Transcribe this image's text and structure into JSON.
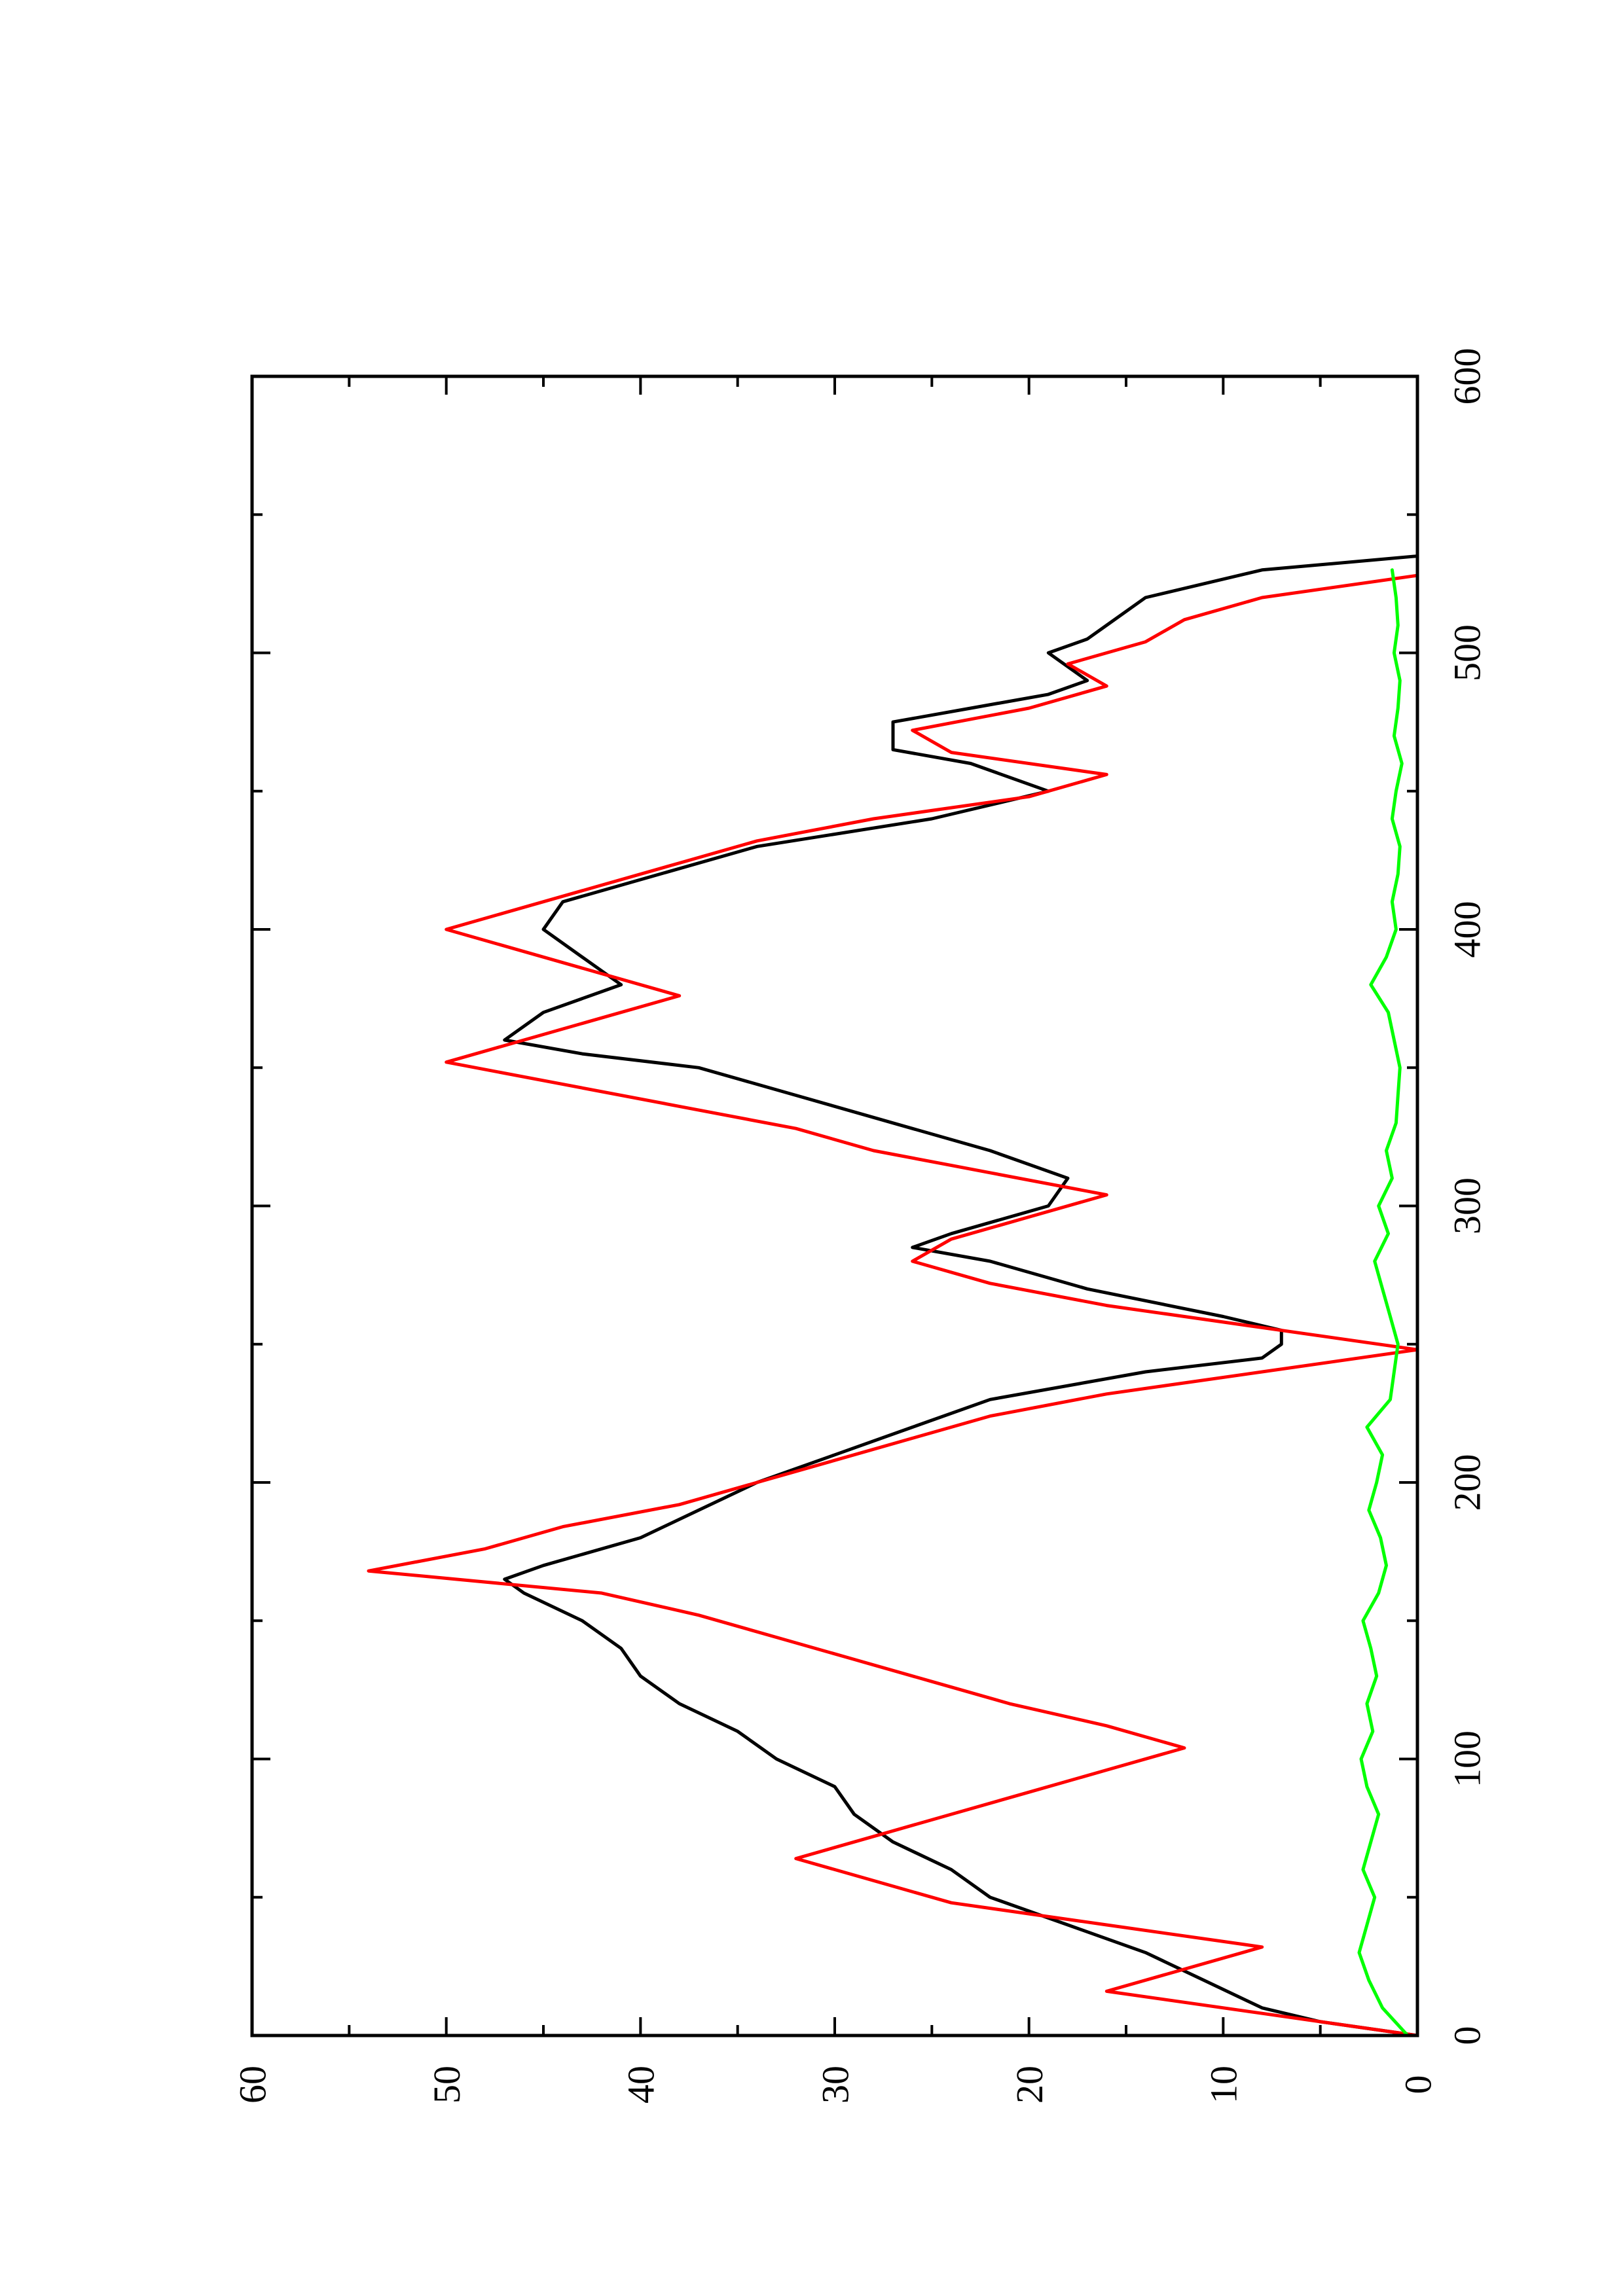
{
  "chart_data": {
    "type": "line",
    "orientation": "rotated-90-ccw",
    "title": "",
    "xlabel": "",
    "ylabel": "",
    "xlim": [
      0,
      600
    ],
    "ylim": [
      0,
      60
    ],
    "x_ticks": [
      0,
      100,
      200,
      300,
      400,
      500,
      600
    ],
    "x_tick_labels": [
      "0",
      "100",
      "200",
      "300",
      "400",
      "500",
      "600"
    ],
    "x_minor_ticks": [
      50,
      150,
      250,
      350,
      450,
      550
    ],
    "y_ticks": [
      0,
      10,
      20,
      30,
      40,
      50,
      60
    ],
    "y_tick_labels": [
      "0",
      "10",
      "20",
      "30",
      "40",
      "50",
      "60"
    ],
    "y_minor_ticks": [
      5,
      15,
      25,
      35,
      45,
      55
    ],
    "grid": false,
    "legend": "none",
    "series": [
      {
        "color": "#000000",
        "x": [
          0,
          5,
          10,
          20,
          30,
          40,
          50,
          60,
          70,
          80,
          90,
          100,
          110,
          120,
          130,
          140,
          150,
          160,
          165,
          170,
          180,
          190,
          200,
          210,
          220,
          230,
          240,
          245,
          250,
          255,
          260,
          270,
          280,
          285,
          290,
          300,
          310,
          320,
          330,
          340,
          350,
          355,
          360,
          370,
          380,
          390,
          400,
          410,
          420,
          430,
          440,
          450,
          460,
          465,
          475,
          480,
          485,
          490,
          500,
          505,
          510,
          520,
          530,
          535
        ],
        "y": [
          0,
          5,
          8,
          11,
          14,
          18,
          22,
          24,
          27,
          29,
          30,
          33,
          35,
          38,
          40,
          41,
          43,
          46,
          47,
          45,
          40,
          37,
          34,
          30,
          26,
          22,
          14,
          8,
          7,
          7,
          10,
          17,
          22,
          26,
          24,
          19,
          18,
          22,
          27,
          32,
          37,
          43,
          47,
          45,
          41,
          43,
          45,
          44,
          39,
          34,
          25,
          19,
          23,
          27,
          27,
          23,
          19,
          17,
          19,
          17,
          16,
          14,
          8,
          0
        ]
      },
      {
        "color": "#ff0000",
        "x": [
          0,
          8,
          16,
          24,
          32,
          40,
          48,
          56,
          64,
          72,
          80,
          88,
          96,
          104,
          112,
          120,
          128,
          136,
          144,
          152,
          160,
          168,
          176,
          184,
          192,
          200,
          208,
          216,
          224,
          232,
          240,
          248,
          256,
          264,
          272,
          280,
          288,
          296,
          304,
          312,
          320,
          328,
          336,
          344,
          352,
          360,
          368,
          376,
          384,
          392,
          400,
          408,
          416,
          424,
          432,
          440,
          448,
          456,
          464,
          472,
          480,
          488,
          496,
          504,
          512,
          520,
          528
        ],
        "y": [
          0,
          8,
          16,
          12,
          8,
          16,
          24,
          28,
          32,
          28,
          24,
          20,
          16,
          12,
          16,
          21,
          25,
          29,
          33,
          37,
          42,
          54,
          48,
          44,
          38,
          34,
          30,
          26,
          22,
          16,
          8,
          0,
          8,
          16,
          22,
          26,
          24,
          20,
          16,
          22,
          28,
          32,
          38,
          44,
          50,
          46,
          42,
          38,
          42,
          46,
          50,
          46,
          42,
          38,
          34,
          28,
          20,
          16,
          24,
          26,
          20,
          16,
          18,
          14,
          12,
          8,
          0
        ]
      },
      {
        "color": "#00ff00",
        "x": [
          0,
          10,
          20,
          30,
          40,
          50,
          60,
          70,
          80,
          90,
          100,
          110,
          120,
          130,
          140,
          150,
          160,
          170,
          180,
          190,
          200,
          210,
          220,
          230,
          240,
          250,
          260,
          270,
          280,
          290,
          300,
          310,
          320,
          330,
          340,
          350,
          360,
          370,
          380,
          390,
          400,
          410,
          420,
          430,
          440,
          450,
          460,
          470,
          480,
          490,
          500,
          510,
          520,
          530
        ],
        "y": [
          0.5,
          1.8,
          2.5,
          3.0,
          2.6,
          2.2,
          2.8,
          2.4,
          2.0,
          2.6,
          2.9,
          2.3,
          2.6,
          2.1,
          2.4,
          2.8,
          2.0,
          1.6,
          1.9,
          2.5,
          2.1,
          1.8,
          2.6,
          1.4,
          1.2,
          1.0,
          1.4,
          1.8,
          2.2,
          1.5,
          2.0,
          1.3,
          1.6,
          1.1,
          1.0,
          0.9,
          1.2,
          1.5,
          2.4,
          1.6,
          1.1,
          1.3,
          1.0,
          0.9,
          1.3,
          1.1,
          0.8,
          1.2,
          1.0,
          0.9,
          1.2,
          1.0,
          1.1,
          1.3
        ]
      }
    ]
  }
}
